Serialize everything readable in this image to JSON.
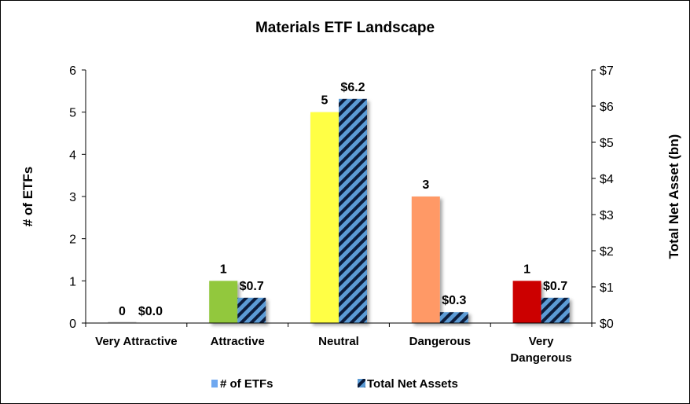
{
  "chart_data": {
    "type": "bar",
    "title": "Materials ETF Landscape",
    "categories": [
      [
        "Very Attractive"
      ],
      [
        "Attractive"
      ],
      [
        "Neutral"
      ],
      [
        "Dangerous"
      ],
      [
        "Very",
        "Dangerous"
      ]
    ],
    "series": [
      {
        "name": "# of ETFs",
        "axis": "left",
        "values": [
          0,
          1,
          5,
          3,
          1
        ],
        "labels": [
          "0",
          "1",
          "5",
          "3",
          "1"
        ],
        "colors": [
          "#cfcfcf",
          "#92c83e",
          "#ffff44",
          "#ff9966",
          "#cc0000"
        ],
        "legend_color": "#6fa8f0"
      },
      {
        "name": "Total Net Assets",
        "axis": "right",
        "values": [
          0.0,
          0.7,
          6.2,
          0.3,
          0.7
        ],
        "labels": [
          "$0.0",
          "$0.7",
          "$6.2",
          "$0.3",
          "$0.7"
        ],
        "pattern": "diagonal-stripes",
        "stripe_colors": [
          "#5b9bd5",
          "#0a1a3a"
        ]
      }
    ],
    "y_left": {
      "label": "# of ETFs",
      "ylim": [
        0,
        6
      ],
      "ticks": [
        "0",
        "1",
        "2",
        "3",
        "4",
        "5",
        "6"
      ]
    },
    "y_right": {
      "label": "Total Net Asset (bn)",
      "ylim": [
        0,
        7
      ],
      "ticks": [
        "$0",
        "$1",
        "$2",
        "$3",
        "$4",
        "$5",
        "$6",
        "$7"
      ]
    },
    "legend_position": "bottom",
    "grid": false
  }
}
